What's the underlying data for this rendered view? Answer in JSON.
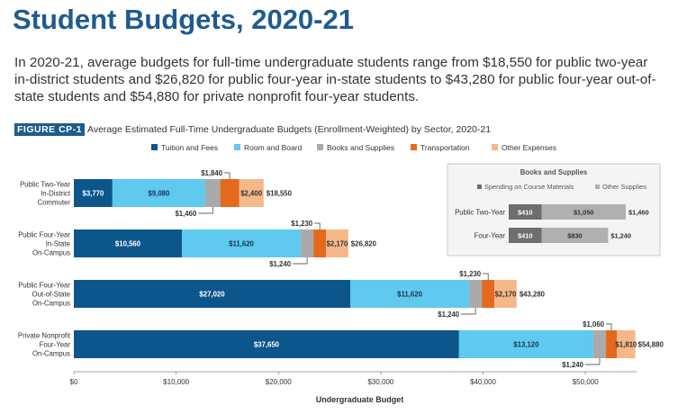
{
  "page": {
    "title": "Student Budgets, 2020-21",
    "intro": "In 2020-21, average budgets for full-time undergraduate students range from $18,550 for public two-year in-district students and $26,820 for public four-year in-state students to $43,280 for public four-year out-of-state students and $54,880 for private nonprofit four-year students.",
    "figure_label": "FIGURE CP-1",
    "figure_title": "Average Estimated Full-Time Undergraduate Budgets (Enrollment-Weighted) by Sector, 2020-21"
  },
  "colors": {
    "title": "#1f5b8f",
    "tuition": "#0d568c",
    "room": "#5fc9f0",
    "books": "#aaaaaa",
    "transport": "#e36a1c",
    "other": "#f6b889",
    "inset_course": "#6e6e6e",
    "inset_other": "#b0b0b0"
  },
  "chart_data": [
    {
      "type": "bar",
      "orientation": "horizontal",
      "stacked": true,
      "categories": [
        [
          "Public Two-Year",
          "In-District",
          "Commuter"
        ],
        [
          "Public Four-Year",
          "In-State",
          "On-Campus"
        ],
        [
          "Public Four-Year",
          "Out-of-State",
          "On-Campus"
        ],
        [
          "Private Nonprofit",
          "Four-Year",
          "On-Campus"
        ]
      ],
      "series": [
        {
          "name": "Tuition and Fees",
          "values": [
            3770,
            10560,
            27020,
            37650
          ],
          "labels": [
            "$3,770",
            "$10,560",
            "$27,020",
            "$37,650"
          ]
        },
        {
          "name": "Room and Board",
          "values": [
            9080,
            11620,
            11620,
            13120
          ],
          "labels": [
            "$9,080",
            "$11,620",
            "$11,620",
            "$13,120"
          ]
        },
        {
          "name": "Books and Supplies",
          "values": [
            1460,
            1240,
            1240,
            1240
          ],
          "labels": [
            "$1,460",
            "$1,240",
            "$1,240",
            "$1,240"
          ]
        },
        {
          "name": "Transportation",
          "values": [
            1840,
            1230,
            1230,
            1060
          ],
          "labels": [
            "$1,840",
            "$1,230",
            "$1,230",
            "$1,060"
          ]
        },
        {
          "name": "Other Expenses",
          "values": [
            2400,
            2170,
            2170,
            1810
          ],
          "labels": [
            "$2,400",
            "$2,170",
            "$2,170",
            "$1,810"
          ]
        }
      ],
      "totals": [
        "$18,550",
        "$26,820",
        "$43,280",
        "$54,880"
      ],
      "xlabel": "Undergraduate Budget",
      "xlim": [
        0,
        55000
      ],
      "xticks": [
        0,
        10000,
        20000,
        30000,
        40000,
        50000
      ],
      "xtick_labels": [
        "$0",
        "$10,000",
        "$20,000",
        "$30,000",
        "$40,000",
        "$50,000"
      ],
      "grid": false,
      "legend": "top"
    },
    {
      "type": "bar",
      "orientation": "horizontal",
      "stacked": true,
      "title": "Books and Supplies",
      "categories": [
        "Public Two-Year",
        "Four-Year"
      ],
      "series": [
        {
          "name": "Spending on Course Materials",
          "values": [
            410,
            410
          ],
          "labels": [
            "$410",
            "$410"
          ]
        },
        {
          "name": "Other Supplies",
          "values": [
            1050,
            830
          ],
          "labels": [
            "$1,050",
            "$830"
          ]
        }
      ],
      "totals": [
        "$1,460",
        "$1,240"
      ],
      "legend": "top",
      "grid": false
    }
  ]
}
